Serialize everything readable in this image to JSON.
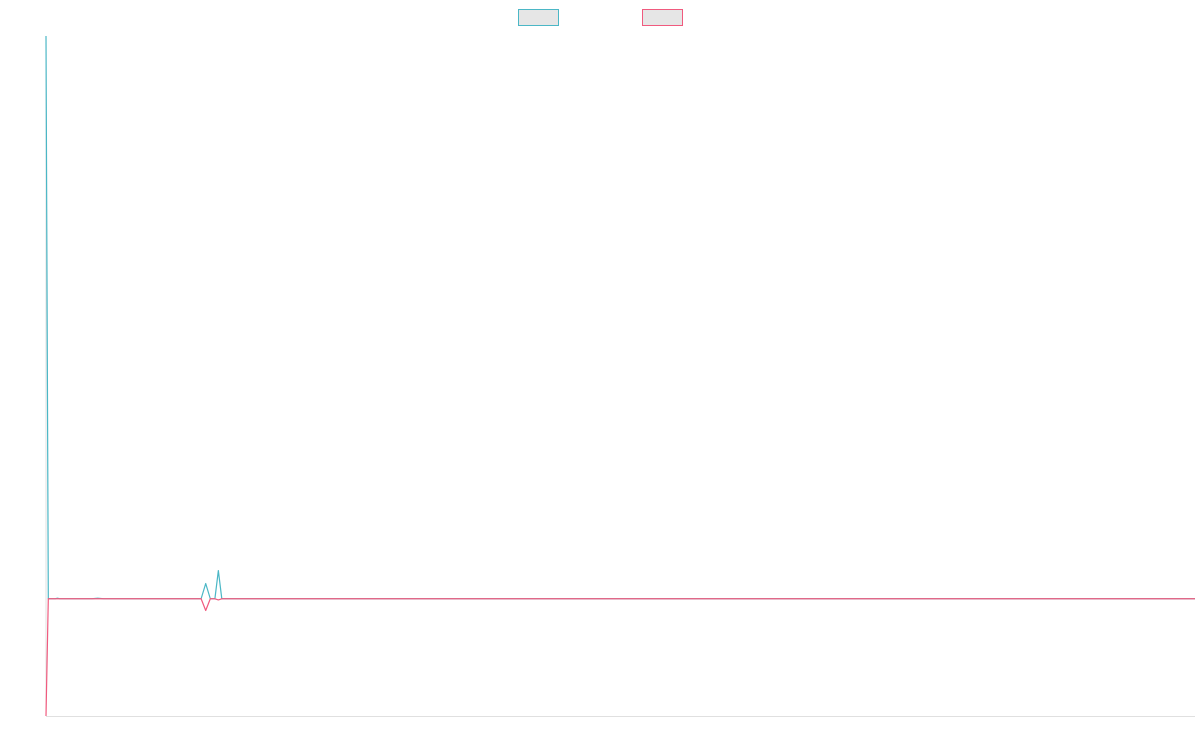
{
  "chart_data": {
    "type": "line",
    "title": "",
    "xlabel": "",
    "ylabel": "",
    "grid": false,
    "legend_position": "top-center",
    "xlim": [
      0,
      100
    ],
    "ylim": [
      -10,
      48
    ],
    "series": [
      {
        "color": "#4bb7c6",
        "points": [
          [
            0,
            48
          ],
          [
            0.2,
            0
          ],
          [
            0.8,
            0
          ],
          [
            1,
            0.05
          ],
          [
            1.2,
            0
          ],
          [
            4,
            0
          ],
          [
            4.5,
            0.05
          ],
          [
            5,
            0
          ],
          [
            13.5,
            0
          ],
          [
            13.9,
            1.3
          ],
          [
            14.3,
            0
          ],
          [
            14.7,
            0
          ],
          [
            15,
            2.4
          ],
          [
            15.3,
            0
          ],
          [
            100,
            0
          ]
        ]
      },
      {
        "color": "#f05a7e",
        "points": [
          [
            0,
            -10
          ],
          [
            0.2,
            0
          ],
          [
            13.5,
            0
          ],
          [
            13.9,
            -1.0
          ],
          [
            14.3,
            0
          ],
          [
            14.7,
            0
          ],
          [
            15,
            -0.1
          ],
          [
            15.3,
            0
          ],
          [
            100,
            0
          ]
        ]
      }
    ]
  }
}
